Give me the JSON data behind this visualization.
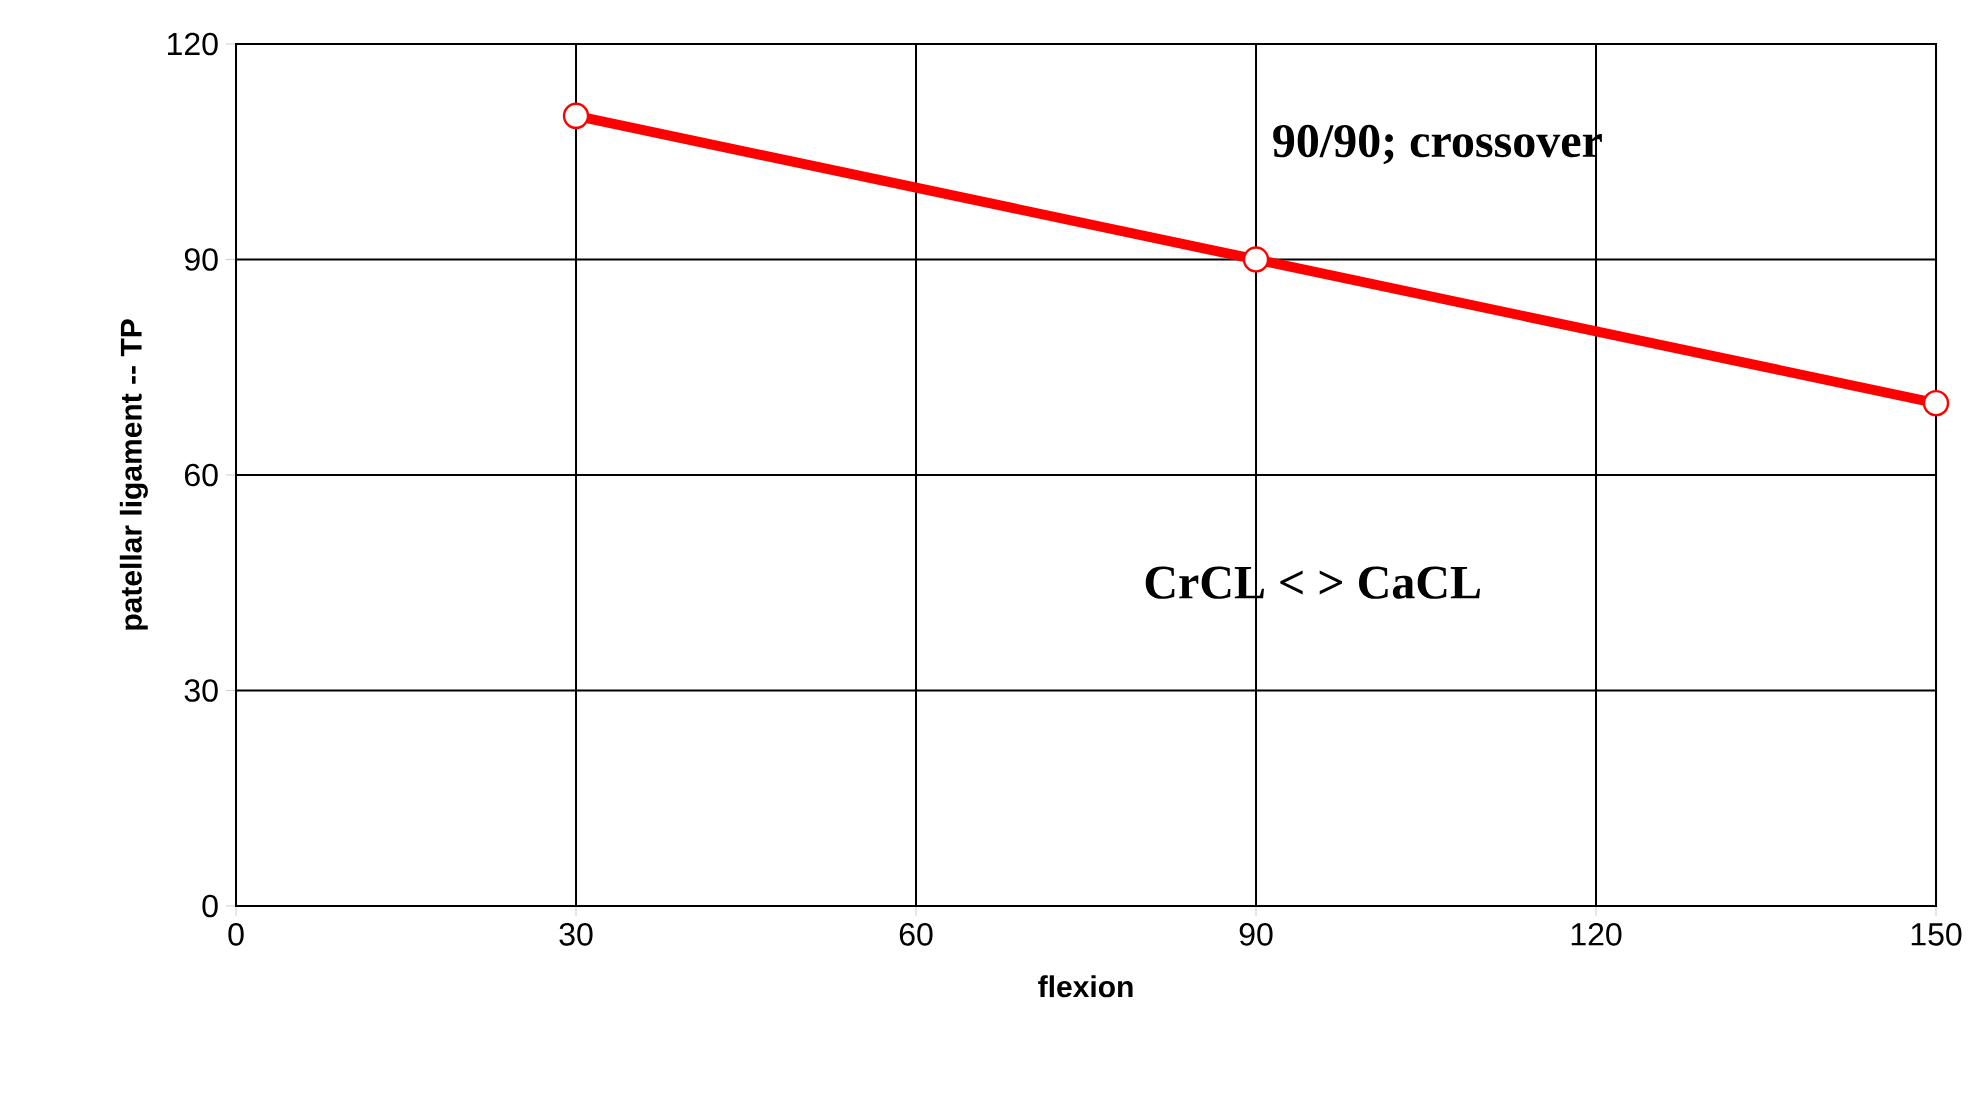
{
  "chart_data": {
    "type": "line",
    "xlabel": "flexion",
    "ylabel": "patellar ligament -- TP",
    "x": [
      30,
      90,
      150
    ],
    "series": [
      {
        "color": "#ff0000",
        "values": [
          110,
          90,
          70
        ]
      }
    ],
    "xlim": [
      0,
      150
    ],
    "ylim": [
      0,
      120
    ],
    "xticks": [
      0,
      30,
      60,
      90,
      120,
      150
    ],
    "yticks": [
      0,
      30,
      60,
      90,
      120
    ],
    "grid": true,
    "marker": "circle",
    "line_style": "solid",
    "annotations": [
      "90/90; crossover",
      "CrCL <   > CaCL"
    ]
  }
}
